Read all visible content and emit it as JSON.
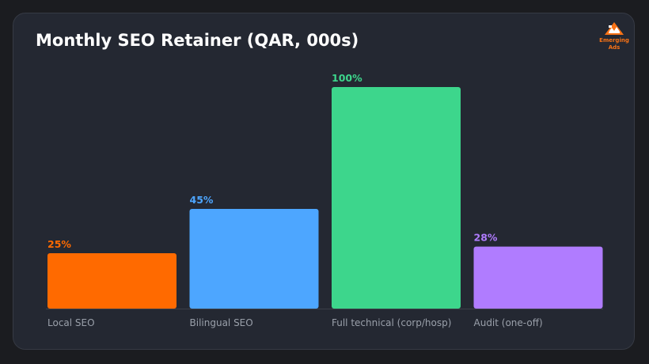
{
  "chart_data": {
    "type": "bar",
    "title": "Monthly SEO Retainer (QAR, 000s)",
    "xlabel": "",
    "ylabel": "",
    "ylim": [
      0,
      100
    ],
    "grid": false,
    "legend": "none",
    "categories": [
      "Local SEO",
      "Bilingual SEO",
      "Full technical (corp/hosp)",
      "Audit (one-off)"
    ],
    "values": [
      25,
      45,
      100,
      28
    ],
    "value_labels": [
      "25%",
      "45%",
      "100%",
      "28%"
    ],
    "colors": [
      "#ff6a00",
      "#4da6ff",
      "#3dd68c",
      "#b07cff"
    ]
  },
  "brand": {
    "line1": "Emerging",
    "line2": "Ads",
    "color": "#f97316",
    "icon": "mountain-logo-icon"
  }
}
